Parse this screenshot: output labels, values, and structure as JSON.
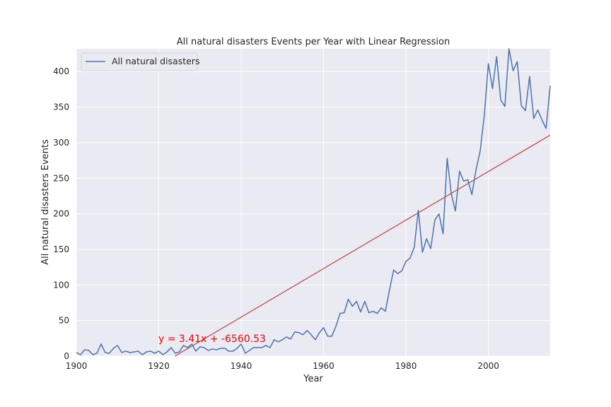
{
  "chart_data": {
    "type": "line",
    "title": "All natural disasters Events per Year with Linear Regression",
    "xlabel": "Year",
    "ylabel": "All natural disasters Events",
    "xlim": [
      1900,
      2015
    ],
    "ylim": [
      0,
      432
    ],
    "x_ticks": [
      1900,
      1920,
      1940,
      1960,
      1980,
      2000
    ],
    "y_ticks": [
      0,
      50,
      100,
      150,
      200,
      250,
      300,
      350,
      400
    ],
    "grid": true,
    "legend_position": "upper-left",
    "series": [
      {
        "name": "All natural disasters",
        "color": "#4c72b0",
        "x": [
          1900,
          1901,
          1902,
          1903,
          1904,
          1905,
          1906,
          1907,
          1908,
          1909,
          1910,
          1911,
          1912,
          1913,
          1914,
          1915,
          1916,
          1917,
          1918,
          1919,
          1920,
          1921,
          1922,
          1923,
          1924,
          1925,
          1926,
          1927,
          1928,
          1929,
          1930,
          1931,
          1932,
          1933,
          1934,
          1935,
          1936,
          1937,
          1938,
          1939,
          1940,
          1941,
          1942,
          1943,
          1944,
          1945,
          1946,
          1947,
          1948,
          1949,
          1950,
          1951,
          1952,
          1953,
          1954,
          1955,
          1956,
          1957,
          1958,
          1959,
          1960,
          1961,
          1962,
          1963,
          1964,
          1965,
          1966,
          1967,
          1968,
          1969,
          1970,
          1971,
          1972,
          1973,
          1974,
          1975,
          1976,
          1977,
          1978,
          1979,
          1980,
          1981,
          1982,
          1983,
          1984,
          1985,
          1986,
          1987,
          1988,
          1989,
          1990,
          1991,
          1992,
          1993,
          1994,
          1995,
          1996,
          1997,
          1998,
          1999,
          2000,
          2001,
          2002,
          2003,
          2004,
          2005,
          2006,
          2007,
          2008,
          2009,
          2010,
          2011,
          2012,
          2013,
          2014,
          2015
        ],
        "values": [
          5,
          2,
          9,
          8,
          2,
          4,
          17,
          5,
          4,
          11,
          15,
          5,
          7,
          5,
          6,
          7,
          2,
          6,
          7,
          4,
          7,
          2,
          6,
          12,
          4,
          6,
          15,
          12,
          17,
          7,
          13,
          12,
          8,
          10,
          9,
          11,
          11,
          7,
          7,
          11,
          17,
          4,
          8,
          12,
          12,
          12,
          15,
          12,
          23,
          20,
          23,
          27,
          24,
          34,
          33,
          30,
          36,
          30,
          23,
          33,
          40,
          28,
          28,
          42,
          60,
          61,
          80,
          70,
          77,
          62,
          77,
          61,
          63,
          60,
          68,
          63,
          93,
          121,
          116,
          120,
          133,
          138,
          153,
          205,
          146,
          165,
          151,
          191,
          200,
          172,
          278,
          228,
          204,
          260,
          246,
          248,
          227,
          262,
          288,
          338,
          411,
          376,
          421,
          360,
          351,
          432,
          401,
          414,
          352,
          345,
          393,
          334,
          346,
          332,
          320,
          380
        ]
      }
    ],
    "regression": {
      "slope": 3.41,
      "intercept": -6560.53,
      "color": "#c44e52",
      "label": "y = 3.41x + -6560.53",
      "label_color": "#ff0000"
    }
  }
}
